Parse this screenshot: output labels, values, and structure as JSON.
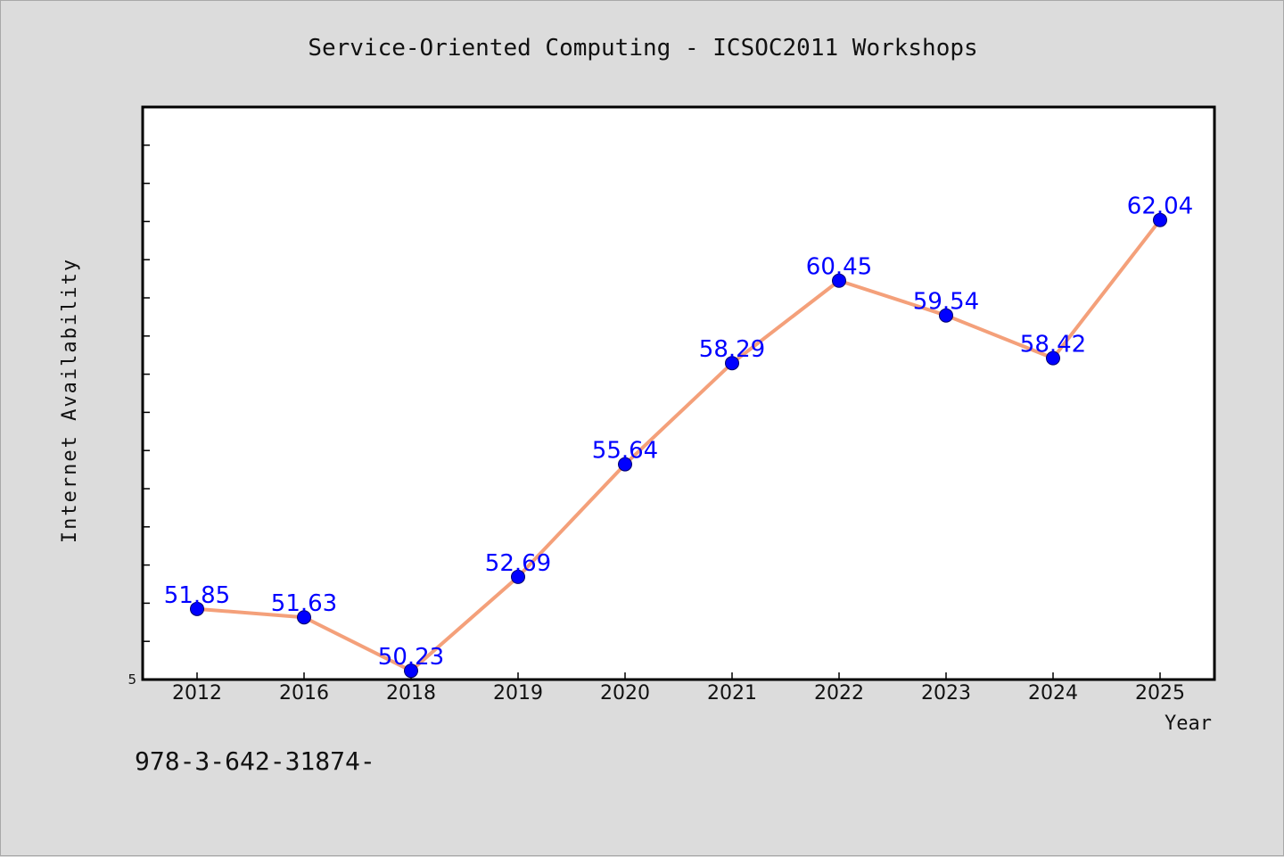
{
  "chart_data": {
    "type": "line",
    "title": "Service-Oriented Computing - ICSOC2011 Workshops",
    "xlabel": "Year",
    "ylabel": "Internet Availability",
    "categories": [
      "2012",
      "2016",
      "2018",
      "2019",
      "2020",
      "2021",
      "2022",
      "2023",
      "2024",
      "2025"
    ],
    "series": [
      {
        "values": [
          51.85,
          51.63,
          50.23,
          52.69,
          55.64,
          58.29,
          60.45,
          59.54,
          58.42,
          62.04
        ],
        "data_labels": [
          "51.85",
          "51.63",
          "50.23",
          "52.69",
          "55.64",
          "58.29",
          "60.45",
          "59.54",
          "58.42",
          "62.04"
        ]
      }
    ],
    "ylim": [
      50,
      65
    ],
    "ytick_label": "5",
    "grid": false,
    "legend": "none",
    "colors": {
      "line": "#f4a07a",
      "marker": "#0000ff",
      "data_label": "#0000ff",
      "plot_background": "#ffffff",
      "figure_background": "#dcdcdc"
    }
  },
  "footer": {
    "text": "978-3-642-31874-"
  }
}
